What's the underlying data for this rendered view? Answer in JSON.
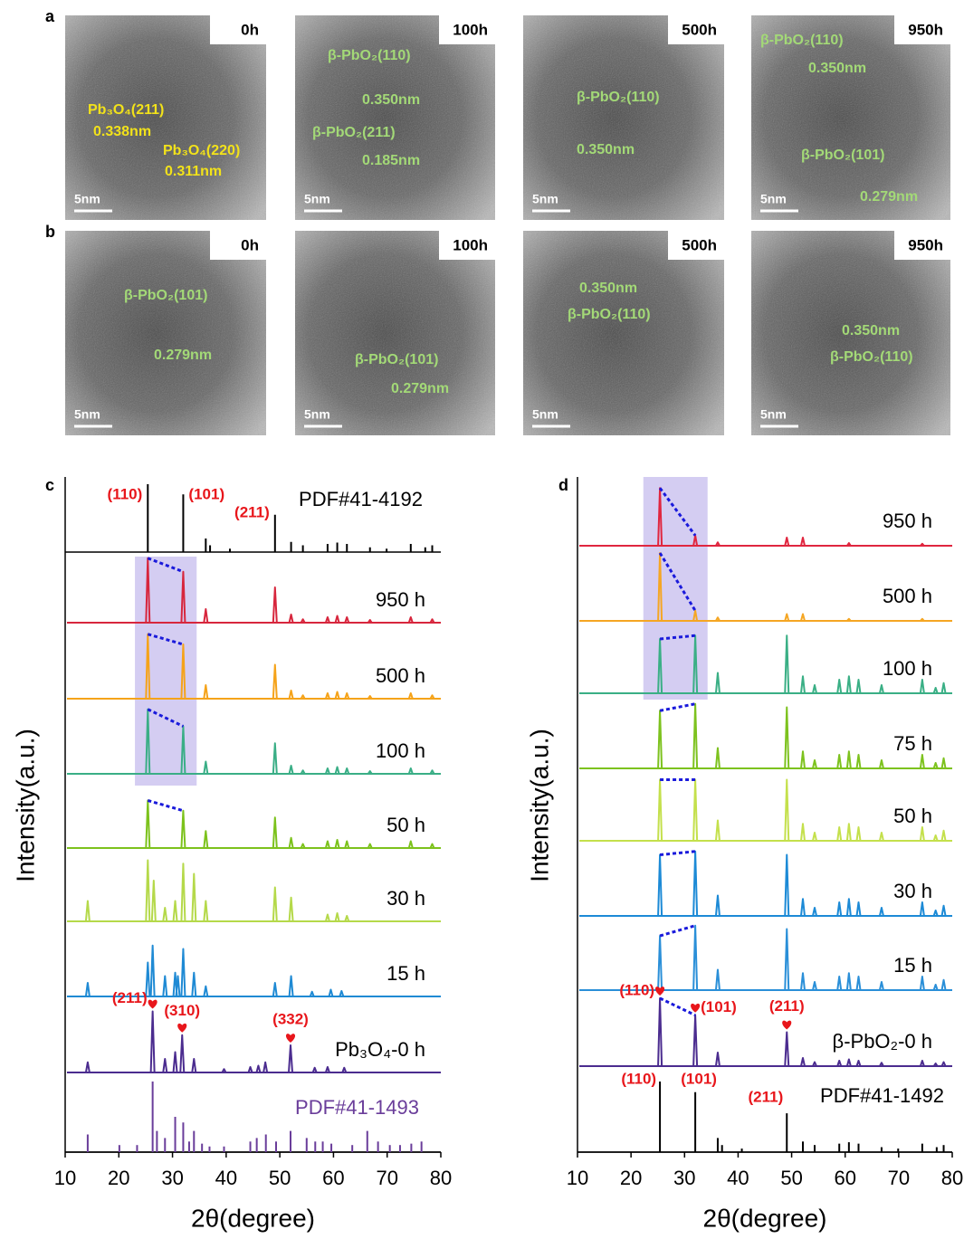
{
  "panel_a": {
    "label": "a",
    "images": [
      {
        "time": "0h",
        "scale": "5nm",
        "notes": [
          "Pb₃O₄(211)",
          "0.338nm",
          "Pb₃O₄(220)",
          "0.311nm"
        ]
      },
      {
        "time": "100h",
        "scale": "5nm",
        "notes": [
          "β-PbO₂(110)",
          "0.350nm",
          "β-PbO₂(211)",
          "0.185nm"
        ]
      },
      {
        "time": "500h",
        "scale": "5nm",
        "notes": [
          "β-PbO₂(110)",
          "0.350nm"
        ]
      },
      {
        "time": "950h",
        "scale": "5nm",
        "notes": [
          "β-PbO₂(110)",
          "0.350nm",
          "β-PbO₂(101)",
          "0.279nm"
        ]
      }
    ]
  },
  "panel_b": {
    "label": "b",
    "images": [
      {
        "time": "0h",
        "scale": "5nm",
        "notes": [
          "β-PbO₂(101)",
          "0.279nm"
        ]
      },
      {
        "time": "100h",
        "scale": "5nm",
        "notes": [
          "β-PbO₂(101)",
          "0.279nm"
        ]
      },
      {
        "time": "500h",
        "scale": "5nm",
        "notes": [
          "0.350nm",
          "β-PbO₂(110)"
        ]
      },
      {
        "time": "950h",
        "scale": "5nm",
        "notes": [
          "0.350nm",
          "β-PbO₂(110)"
        ]
      }
    ]
  },
  "chart_data": [
    {
      "type": "xrd",
      "panel_label": "c",
      "xlabel": "2θ(degree)",
      "ylabel": "Intensity(a.u.)",
      "xlim": [
        10,
        80
      ],
      "xticks": [
        10,
        20,
        30,
        40,
        50,
        60,
        70,
        80
      ],
      "highlight": [
        23,
        34.5
      ],
      "references": [
        {
          "name": "PDF#41-4192",
          "color": "#000000",
          "x": [
            25.4,
            32.0,
            36.2,
            37.0,
            40.7,
            49.1,
            52.1,
            54.3,
            58.9,
            60.7,
            62.5,
            66.8,
            69.9,
            74.4,
            77.1,
            78.4
          ],
          "values": [
            1.0,
            0.85,
            0.2,
            0.1,
            0.05,
            0.55,
            0.15,
            0.1,
            0.12,
            0.14,
            0.12,
            0.07,
            0.05,
            0.12,
            0.07,
            0.1
          ],
          "annotations": [
            {
              "text": "(110)",
              "x": 25.4
            },
            {
              "text": "(101)",
              "x": 32.0
            },
            {
              "text": "(211)",
              "x": 49.1
            }
          ]
        },
        {
          "name": "PDF#41-1493",
          "color": "#6a3d9a",
          "x": [
            14.2,
            20.1,
            23.4,
            26.3,
            27.1,
            28.6,
            30.5,
            32.0,
            33.1,
            34.0,
            35.5,
            36.9,
            39.6,
            44.5,
            45.7,
            47.4,
            49.3,
            52.0,
            55.0,
            56.6,
            58.0,
            59.6,
            63.5,
            66.3,
            68.3,
            70.5,
            72.4,
            74.5,
            76.4
          ],
          "values": [
            0.25,
            0.1,
            0.1,
            1.0,
            0.3,
            0.2,
            0.5,
            0.42,
            0.15,
            0.3,
            0.12,
            0.08,
            0.08,
            0.15,
            0.2,
            0.25,
            0.15,
            0.3,
            0.2,
            0.15,
            0.15,
            0.12,
            0.1,
            0.3,
            0.15,
            0.1,
            0.1,
            0.12,
            0.15
          ],
          "annotations": []
        }
      ],
      "series": [
        {
          "name": "950 h",
          "color": "#d7263d",
          "link": true,
          "x": [
            25.4,
            32.0,
            36.2,
            49.1,
            52.1,
            54.3,
            58.9,
            60.7,
            62.5,
            66.8,
            74.4,
            78.4
          ],
          "values": [
            0.95,
            0.75,
            0.2,
            0.52,
            0.12,
            0.05,
            0.08,
            0.1,
            0.08,
            0.04,
            0.08,
            0.05
          ]
        },
        {
          "name": "500 h",
          "color": "#f5a31a",
          "link": true,
          "x": [
            25.4,
            32.0,
            36.2,
            49.1,
            52.1,
            54.3,
            58.9,
            60.7,
            62.5,
            66.8,
            74.4,
            78.4
          ],
          "values": [
            0.95,
            0.8,
            0.2,
            0.5,
            0.12,
            0.05,
            0.08,
            0.1,
            0.08,
            0.04,
            0.08,
            0.05
          ]
        },
        {
          "name": "100 h",
          "color": "#3aae86",
          "link": true,
          "x": [
            25.4,
            32.0,
            36.2,
            49.1,
            52.1,
            54.3,
            58.9,
            60.7,
            62.5,
            66.8,
            74.4,
            78.4
          ],
          "values": [
            0.95,
            0.7,
            0.18,
            0.45,
            0.12,
            0.05,
            0.08,
            0.1,
            0.08,
            0.04,
            0.08,
            0.05
          ]
        },
        {
          "name": "50 h",
          "color": "#7cc21c",
          "link": true,
          "x": [
            25.4,
            32.0,
            36.2,
            49.1,
            52.1,
            54.3,
            58.9,
            60.7,
            62.5,
            66.8,
            74.4,
            78.4
          ],
          "values": [
            0.7,
            0.55,
            0.25,
            0.45,
            0.15,
            0.06,
            0.1,
            0.12,
            0.1,
            0.06,
            0.1,
            0.06
          ]
        },
        {
          "name": "30 h",
          "color": "#b5d94a",
          "link": false,
          "x": [
            14.2,
            25.4,
            26.5,
            28.6,
            30.5,
            32.0,
            34.0,
            36.2,
            49.1,
            52.1,
            58.9,
            60.7,
            62.5
          ],
          "values": [
            0.3,
            0.9,
            0.6,
            0.2,
            0.3,
            0.85,
            0.7,
            0.3,
            0.5,
            0.35,
            0.1,
            0.12,
            0.08
          ]
        },
        {
          "name": "15 h",
          "color": "#1f8ad4",
          "link": false,
          "x": [
            14.2,
            25.4,
            26.3,
            28.6,
            30.5,
            31.0,
            32.0,
            34.0,
            36.2,
            49.1,
            52.1,
            56.0,
            59.5,
            61.5
          ],
          "values": [
            0.2,
            0.5,
            0.75,
            0.3,
            0.35,
            0.3,
            0.7,
            0.35,
            0.15,
            0.2,
            0.3,
            0.07,
            0.1,
            0.08
          ]
        },
        {
          "name": "Pb₃O₄-0 h",
          "color": "#4b2c8f",
          "link": false,
          "x": [
            14.2,
            26.3,
            28.6,
            30.5,
            31.8,
            34.0,
            39.6,
            44.5,
            46.0,
            47.3,
            52.0,
            56.5,
            58.9,
            62.0
          ],
          "values": [
            0.15,
            0.9,
            0.2,
            0.3,
            0.55,
            0.2,
            0.05,
            0.08,
            0.1,
            0.15,
            0.4,
            0.07,
            0.08,
            0.07
          ],
          "peak_labels": [
            {
              "text": "(211)",
              "x": 26.3
            },
            {
              "text": "(310)",
              "x": 31.8
            },
            {
              "text": "(332)",
              "x": 52.0
            }
          ]
        }
      ]
    },
    {
      "type": "xrd",
      "panel_label": "d",
      "xlabel": "2θ(degree)",
      "ylabel": "Intensity(a.u.)",
      "xlim": [
        10,
        80
      ],
      "xticks": [
        10,
        20,
        30,
        40,
        50,
        60,
        70,
        80
      ],
      "highlight": [
        22.3,
        34.3
      ],
      "references": [
        {
          "name": "PDF#41-1492",
          "color": "#000000",
          "x": [
            25.4,
            32.0,
            36.2,
            37.0,
            40.7,
            49.1,
            52.1,
            54.3,
            58.9,
            60.7,
            62.5,
            66.8,
            69.9,
            74.4,
            77.1,
            78.4
          ],
          "values": [
            1.0,
            0.85,
            0.2,
            0.1,
            0.05,
            0.55,
            0.15,
            0.1,
            0.12,
            0.14,
            0.12,
            0.07,
            0.05,
            0.12,
            0.07,
            0.1
          ],
          "annotations": [
            {
              "text": "(110)",
              "x": 25.4
            },
            {
              "text": "(101)",
              "x": 32.0
            },
            {
              "text": "(211)",
              "x": 49.1
            }
          ]
        }
      ],
      "series": [
        {
          "name": "950 h",
          "color": "#e0263f",
          "link": true,
          "x": [
            25.4,
            32.0,
            36.2,
            49.1,
            52.1,
            60.7,
            74.4
          ],
          "values": [
            0.85,
            0.15,
            0.05,
            0.12,
            0.12,
            0.04,
            0.03
          ]
        },
        {
          "name": "500 h",
          "color": "#f5a623",
          "link": true,
          "x": [
            25.4,
            32.0,
            36.2,
            49.1,
            52.1,
            60.7,
            74.4
          ],
          "values": [
            1.0,
            0.15,
            0.05,
            0.1,
            0.1,
            0.03,
            0.03
          ]
        },
        {
          "name": "100 h",
          "color": "#3aaf85",
          "link": true,
          "x": [
            25.4,
            32.0,
            36.2,
            49.1,
            52.1,
            54.3,
            58.9,
            60.7,
            62.5,
            66.8,
            74.4,
            76.9,
            78.4
          ],
          "values": [
            0.8,
            0.85,
            0.3,
            0.85,
            0.25,
            0.12,
            0.2,
            0.25,
            0.2,
            0.12,
            0.2,
            0.08,
            0.15
          ]
        },
        {
          "name": "75 h",
          "color": "#7dc21e",
          "link": true,
          "x": [
            25.4,
            32.0,
            36.2,
            49.1,
            52.1,
            54.3,
            58.9,
            60.7,
            62.5,
            66.8,
            74.4,
            76.9,
            78.4
          ],
          "values": [
            0.85,
            0.95,
            0.3,
            0.9,
            0.25,
            0.12,
            0.2,
            0.25,
            0.2,
            0.12,
            0.2,
            0.08,
            0.15
          ]
        },
        {
          "name": "50 h",
          "color": "#c4e04c",
          "link": true,
          "x": [
            25.4,
            32.0,
            36.2,
            49.1,
            52.1,
            54.3,
            58.9,
            60.7,
            62.5,
            66.8,
            74.4,
            76.9,
            78.4
          ],
          "values": [
            0.9,
            0.9,
            0.3,
            0.9,
            0.25,
            0.12,
            0.2,
            0.25,
            0.2,
            0.12,
            0.2,
            0.08,
            0.15
          ]
        },
        {
          "name": "30 h",
          "color": "#1c8ad6",
          "link": true,
          "x": [
            25.4,
            32.0,
            36.2,
            49.1,
            52.1,
            54.3,
            58.9,
            60.7,
            62.5,
            66.8,
            74.4,
            76.9,
            78.4
          ],
          "values": [
            0.9,
            0.95,
            0.3,
            0.9,
            0.25,
            0.12,
            0.2,
            0.25,
            0.2,
            0.12,
            0.2,
            0.08,
            0.15
          ]
        },
        {
          "name": "15 h",
          "color": "#2a8fd8",
          "link": true,
          "x": [
            25.4,
            32.0,
            36.2,
            49.1,
            52.1,
            54.3,
            58.9,
            60.7,
            62.5,
            66.8,
            74.4,
            76.9,
            78.4
          ],
          "values": [
            0.8,
            0.95,
            0.3,
            0.9,
            0.25,
            0.12,
            0.2,
            0.25,
            0.2,
            0.12,
            0.2,
            0.08,
            0.15
          ]
        },
        {
          "name": "β-PbO₂-0 h",
          "color": "#4b2c8f",
          "link": true,
          "x": [
            25.4,
            32.0,
            36.2,
            49.1,
            52.1,
            54.3,
            58.9,
            60.7,
            62.5,
            66.8,
            74.4,
            76.9,
            78.4
          ],
          "values": [
            1.0,
            0.75,
            0.2,
            0.5,
            0.12,
            0.06,
            0.08,
            0.1,
            0.08,
            0.05,
            0.08,
            0.04,
            0.06
          ],
          "peak_labels": [
            {
              "text": "(110)",
              "x": 25.4
            },
            {
              "text": "(101)",
              "x": 32.0
            },
            {
              "text": "(211)",
              "x": 49.1
            }
          ]
        }
      ]
    }
  ]
}
